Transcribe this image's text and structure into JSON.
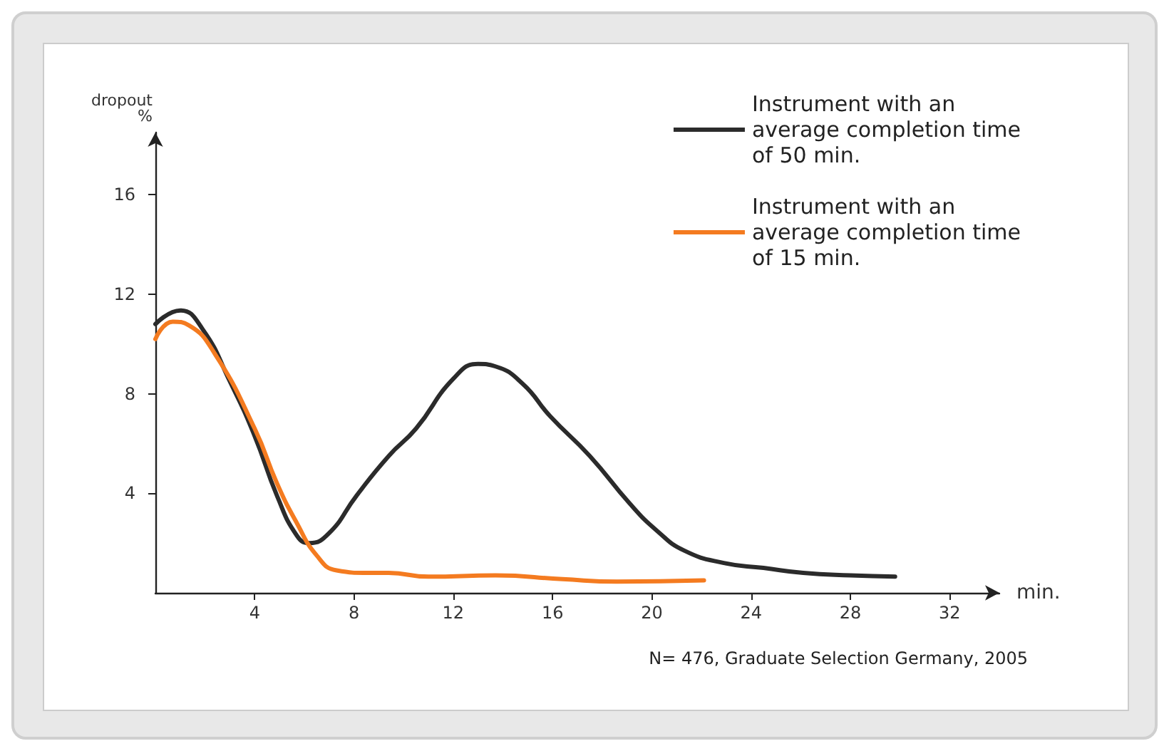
{
  "chart_data": {
    "type": "line",
    "xlabel": "min.",
    "ylabel": "dropout\n%",
    "x": [
      0,
      1,
      1.9,
      3,
      4,
      4.9,
      5.7,
      6.2,
      7,
      8.1,
      9.4,
      10.5,
      12,
      13,
      13.7,
      14.8,
      15.9,
      17.5,
      19.1,
      20.2,
      21.3,
      22.9,
      24.5,
      26.1,
      28,
      29.8
    ],
    "series": [
      {
        "name": "Instrument with an\naverage completion time\nof 50 min.",
        "color": "#2b2b2b",
        "values": [
          10.8,
          11.35,
          10.6,
          8.5,
          6.3,
          3.9,
          2.3,
          2.0,
          2.4,
          3.9,
          5.5,
          6.6,
          8.6,
          9.2,
          9.1,
          8.4,
          7.1,
          5.5,
          3.6,
          2.5,
          1.7,
          1.2,
          1.0,
          0.8,
          0.7,
          0.65
        ]
      },
      {
        "name": "Instrument with an\naverage completion time\nof 15 min.",
        "color": "#f47b20",
        "x": [
          0,
          0.7,
          1.35,
          2.4,
          4,
          4.9,
          5.7,
          6.5,
          7.3,
          8.6,
          9.4,
          11,
          13.7,
          16.4,
          18.6,
          22.1
        ],
        "values": [
          10.2,
          10.9,
          10.75,
          9.6,
          6.6,
          4.4,
          2.8,
          1.5,
          0.9,
          0.8,
          0.8,
          0.65,
          0.7,
          0.55,
          0.45,
          0.5
        ]
      }
    ],
    "xlim": [
      0,
      34
    ],
    "xticks": [
      4,
      8,
      12,
      16,
      20,
      24,
      28,
      32
    ],
    "ylim": [
      0,
      18.5
    ],
    "yticks": [
      4,
      8,
      12,
      16
    ],
    "grid": false,
    "legend": "top right",
    "marker": "none",
    "line_style": "solid",
    "annotations": [
      "N= 476, Graduate Selection Germany, 2005"
    ]
  }
}
